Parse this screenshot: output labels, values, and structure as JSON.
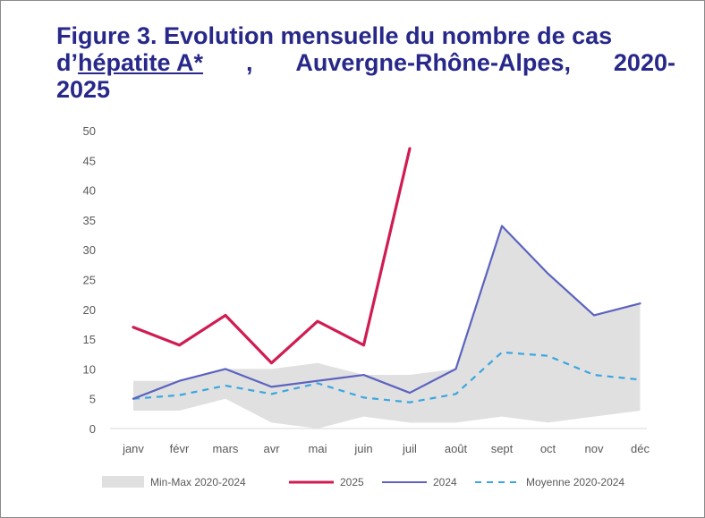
{
  "title": {
    "line1": "Figure 3. Evolution mensuelle du nombre de cas",
    "line2_prefix": "d’",
    "line2_link": "hépatite A*",
    "line2_comma": ",",
    "line2_region": "Auvergne-Rhône-Alpes,",
    "line2_years": "2020-",
    "line3": "2025"
  },
  "chart_data": {
    "type": "line",
    "categories": [
      "janv",
      "févr",
      "mars",
      "avr",
      "mai",
      "juin",
      "juil",
      "août",
      "sept",
      "oct",
      "nov",
      "déc"
    ],
    "ylim": [
      0,
      50
    ],
    "yticks": [
      0,
      5,
      10,
      15,
      20,
      25,
      30,
      35,
      40,
      45,
      50
    ],
    "yticklabels": [
      "0",
      "5",
      "10",
      "15",
      "20",
      "25",
      "30",
      "35",
      "40",
      "45",
      "50"
    ],
    "grid": false,
    "legend_position": "bottom",
    "band": {
      "name": "Min-Max 2020-2024",
      "color": "#e0e0e0",
      "min": [
        3,
        3,
        5,
        1,
        0,
        2,
        1,
        1,
        2,
        1,
        2,
        3
      ],
      "max": [
        8,
        8,
        10,
        10,
        11,
        9,
        9,
        10,
        34,
        26,
        19,
        21
      ]
    },
    "series": [
      {
        "name": "2025",
        "color": "#d01c52",
        "style": "solid",
        "values": [
          17,
          14,
          19,
          11,
          18,
          14,
          47,
          null,
          null,
          null,
          null,
          null
        ]
      },
      {
        "name": "2024",
        "color": "#5b63c0",
        "style": "solid",
        "values": [
          5,
          8,
          10,
          7,
          8,
          9,
          6,
          10,
          34,
          26,
          19,
          21
        ]
      },
      {
        "name": "Moyenne 2020-2024",
        "color": "#3aa6e0",
        "style": "dashed",
        "values": [
          5,
          5.6,
          7.2,
          5.8,
          7.6,
          5.2,
          4.4,
          5.8,
          12.8,
          12.2,
          9,
          8.2
        ]
      }
    ]
  }
}
